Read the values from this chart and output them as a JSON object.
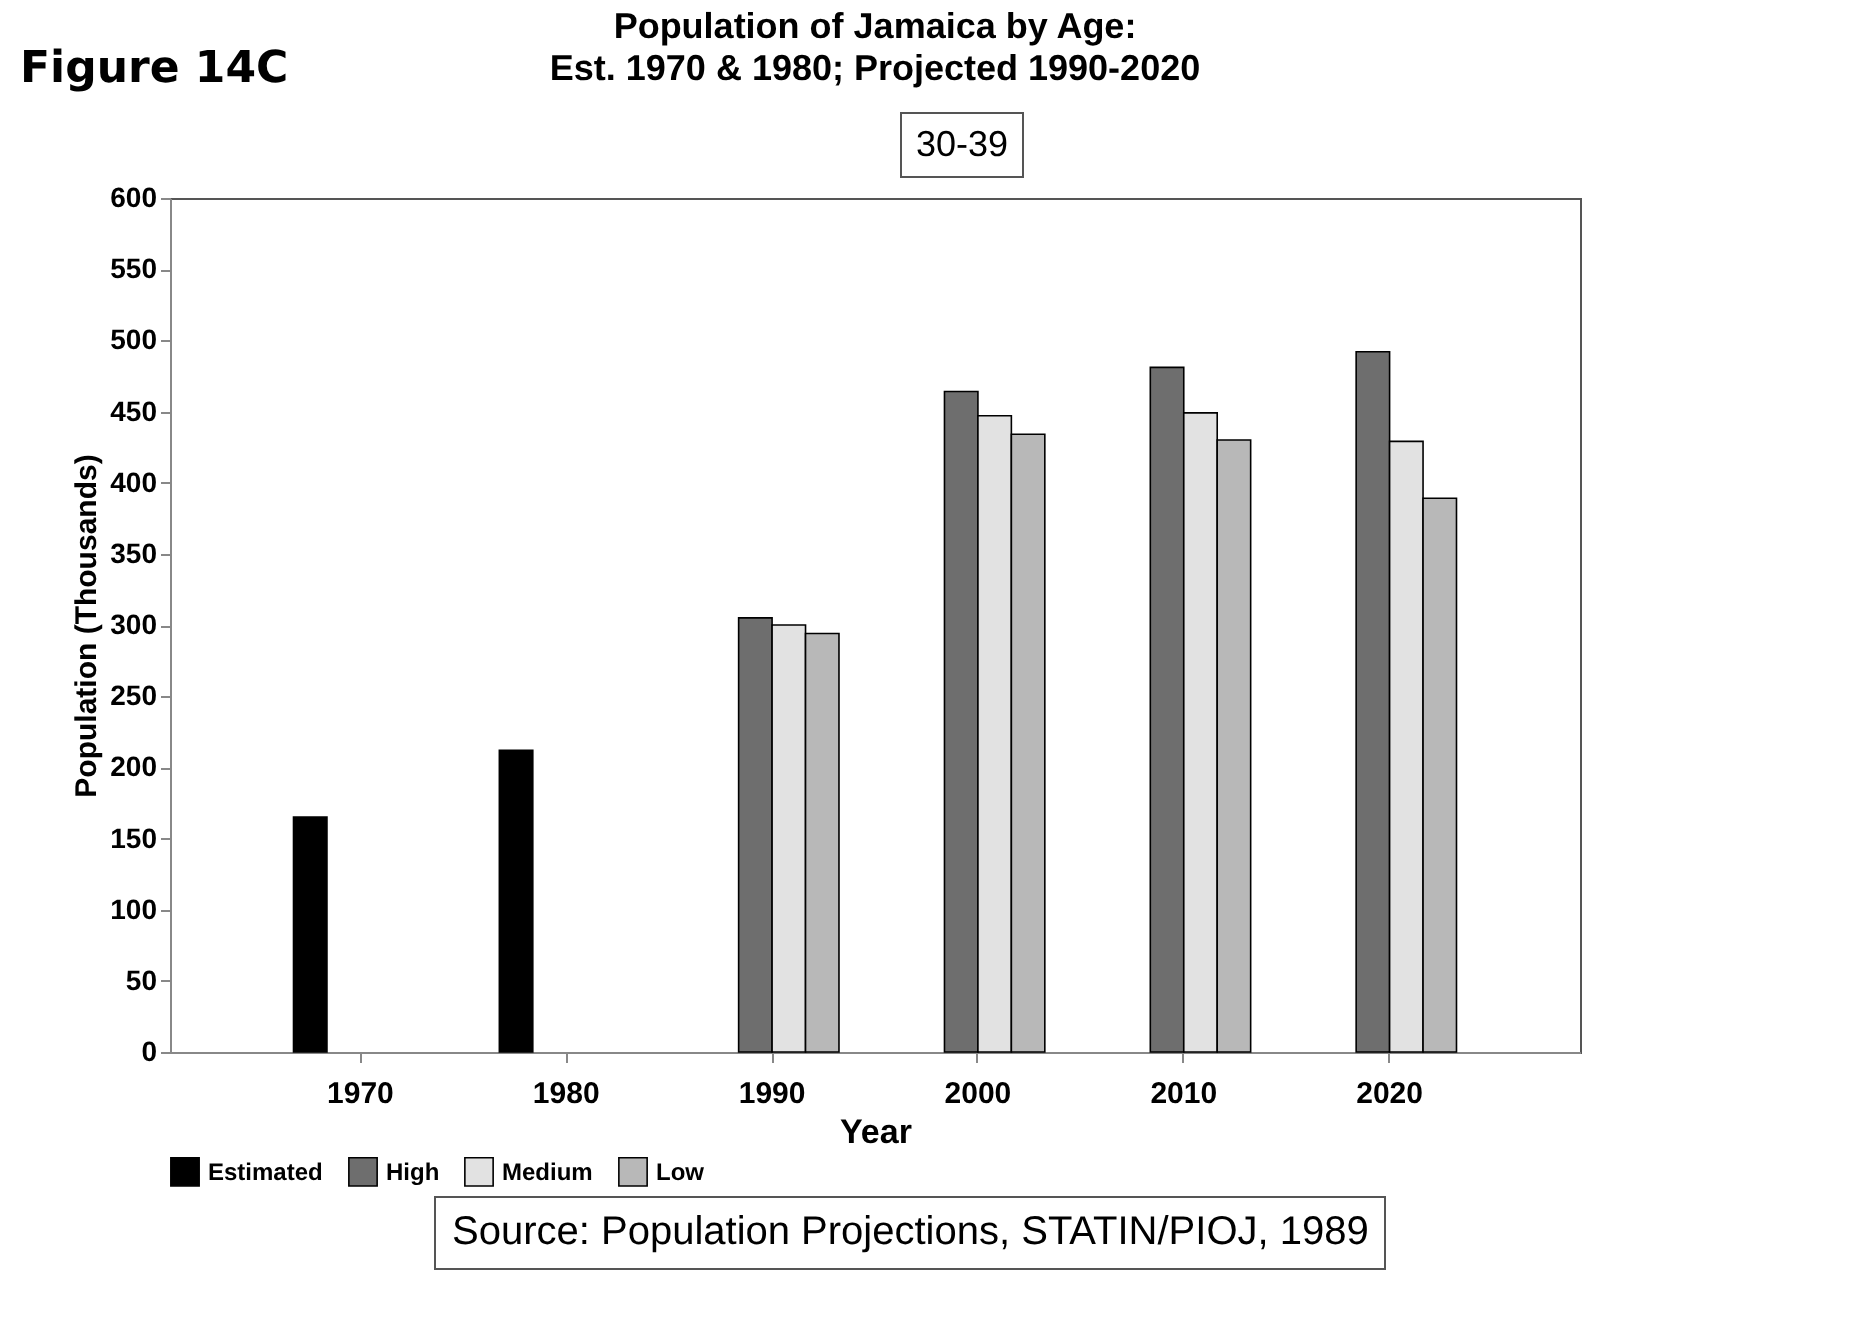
{
  "chart_data": {
    "type": "bar",
    "title": "Population of Jamaica by Age:",
    "subtitle": "Est. 1970 & 1980; Projected 1990-2020",
    "xlabel": "Year",
    "ylabel": "Population (Thousands)",
    "annotations": [
      "Figure 14C",
      "30-39",
      "Source:  Population Projections, STATIN/PIOJ, 1989"
    ],
    "categories": [
      "1970",
      "1980",
      "1990",
      "2000",
      "2010",
      "2020"
    ],
    "series": [
      {
        "name": "Estimated",
        "color": "#000000",
        "values": [
          165,
          212,
          null,
          null,
          null,
          null
        ]
      },
      {
        "name": "High",
        "color": "#6e6e6e",
        "values": [
          null,
          null,
          305,
          464,
          481,
          492
        ]
      },
      {
        "name": "Medium",
        "color": "#e2e2e2",
        "values": [
          null,
          null,
          300,
          447,
          449,
          429
        ]
      },
      {
        "name": "Low",
        "color": "#b8b8b8",
        "values": [
          null,
          null,
          294,
          434,
          430,
          389
        ]
      }
    ],
    "ylim": [
      0,
      600
    ],
    "yticks": [
      0,
      50,
      100,
      150,
      200,
      250,
      300,
      350,
      400,
      450,
      500,
      550,
      600
    ],
    "grid": false,
    "legend": "bottom"
  }
}
